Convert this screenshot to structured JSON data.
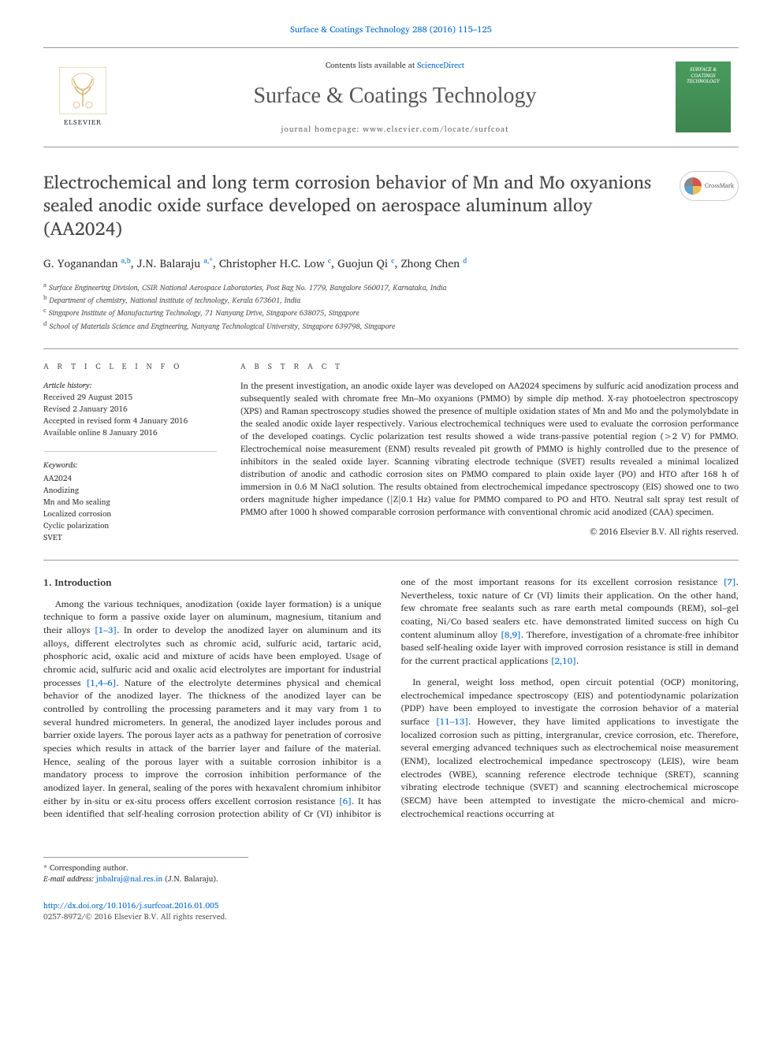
{
  "header": {
    "top_link": "Surface & Coatings Technology 288 (2016) 115–125",
    "contents_prefix": "Contents lists available at ",
    "contents_link": "ScienceDirect",
    "journal_name": "Surface & Coatings Technology",
    "homepage_label": "journal homepage: ",
    "homepage_url": "www.elsevier.com/locate/surfcoat",
    "elsevier": "ELSEVIER",
    "cover_title": "SURFACE & COATINGS TECHNOLOGY"
  },
  "crossmark_label": "CrossMark",
  "title": "Electrochemical and long term corrosion behavior of Mn and Mo oxyanions sealed anodic oxide surface developed on aerospace aluminum alloy (AA2024)",
  "authors": [
    {
      "name": "G. Yoganandan",
      "aff": "a,b"
    },
    {
      "name": "J.N. Balaraju",
      "aff": "a,*"
    },
    {
      "name": "Christopher H.C. Low",
      "aff": "c"
    },
    {
      "name": "Guojun Qi",
      "aff": "c"
    },
    {
      "name": "Zhong Chen",
      "aff": "d"
    }
  ],
  "affiliations": [
    {
      "key": "a",
      "text": "Surface Engineering Division, CSIR National Aerospace Laboratories, Post Bag No. 1779, Bangalore 560017, Karnataka, India"
    },
    {
      "key": "b",
      "text": "Department of chemistry, National institute of technology, Kerala 673601, India"
    },
    {
      "key": "c",
      "text": "Singapore Institute of Manufacturing Technology, 71 Nanyang Drive, Singapore 638075, Singapore"
    },
    {
      "key": "d",
      "text": "School of Materials Science and Engineering, Nanyang Technological University, Singapore 639798, Singapore"
    }
  ],
  "info_heading": "a r t i c l e   i n f o",
  "abstract_heading": "a b s t r a c t",
  "history_label": "Article history:",
  "history": [
    "Received 29 August 2015",
    "Revised 2 January 2016",
    "Accepted in revised form 4 January 2016",
    "Available online 8 January 2016"
  ],
  "keywords_label": "Keywords:",
  "keywords": [
    "AA2024",
    "Anodizing",
    "Mn and Mo sealing",
    "Localized corrosion",
    "Cyclic polarization",
    "SVET"
  ],
  "abstract": "In the present investigation, an anodic oxide layer was developed on AA2024 specimens by sulfuric acid anodization process and subsequently sealed with chromate free Mn–Mo oxyanions (PMMO) by simple dip method. X-ray photoelectron spectroscopy (XPS) and Raman spectroscopy studies showed the presence of multiple oxidation states of Mn and Mo and the polymolybdate in the sealed anodic oxide layer respectively. Various electrochemical techniques were used to evaluate the corrosion performance of the developed coatings. Cyclic polarization test results showed a wide trans-passive potential region (>2 V) for PMMO. Electrochemical noise measurement (ENM) results revealed pit growth of PMMO is highly controlled due to the presence of inhibitors in the sealed oxide layer. Scanning vibrating electrode technique (SVET) results revealed a minimal localized distribution of anodic and cathodic corrosion sites on PMMO compared to plain oxide layer (PO) and HTO after 168 h of immersion in 0.6 M NaCl solution. The results obtained from electrochemical impedance spectroscopy (EIS) showed one to two orders magnitude higher impedance (|Z|0.1 Hz) value for PMMO compared to PO and HTO. Neutral salt spray test result of PMMO after 1000 h showed comparable corrosion performance with conventional chromic acid anodized (CAA) specimen.",
  "abstract_copyright": "© 2016 Elsevier B.V. All rights reserved.",
  "section1_heading": "1. Introduction",
  "para1a": "Among the various techniques, anodization (oxide layer formation) is a unique technique to form a passive oxide layer on aluminum, magnesium, titanium and their alloys ",
  "ref1": "[1–3]",
  "para1b": ". In order to develop the anodized layer on aluminum and its alloys, different electrolytes such as chromic acid, sulfuric acid, tartaric acid, phosphoric acid, oxalic acid and mixture of acids have been employed. Usage of chromic acid, sulfuric acid and oxalic acid electrolytes are important for industrial processes ",
  "ref2": "[1,4–6]",
  "para1c": ". Nature of the electrolyte determines physical and chemical behavior of the anodized layer. The thickness of the anodized layer can be controlled by controlling the processing parameters and it may vary from 1 to several hundred micrometers. In general, the anodized layer includes porous and barrier oxide layers. The porous layer acts as a pathway for penetration of corrosive species which results in attack of the barrier layer and failure of the material. Hence, sealing of the porous layer with a suitable corrosion inhibitor is a mandatory process to improve the corrosion inhibition performance of the anodized layer. In general, sealing of the pores with hexavalent chromium inhibitor either by in-situ or ex-situ process offers excellent corrosion resistance ",
  "ref3": "[6]",
  "para1d": ". It has been identified that self-healing corrosion protection ability of Cr (VI) inhibitor is one of the most important reasons for its excellent corrosion resistance ",
  "ref4": "[7]",
  "para1e": ". Nevertheless, toxic nature of Cr (VI) limits their application. On the other hand, few chromate free sealants such as rare earth metal compounds (REM), sol–gel coating, Ni/Co based sealers etc. have demonstrated limited success on high Cu content aluminum alloy ",
  "ref5": "[8,9]",
  "para1f": ". Therefore, investigation of a chromate-free inhibitor based self-healing oxide layer with improved corrosion resistance is still in demand for the current practical applications ",
  "ref6": "[2,10]",
  "para1g": ".",
  "para2a": "In general, weight loss method, open circuit potential (OCP) monitoring, electrochemical impedance spectroscopy (EIS) and potentiodynamic polarization (PDP) have been employed to investigate the corrosion behavior of a material surface ",
  "ref7": "[11–13]",
  "para2b": ". However, they have limited applications to investigate the localized corrosion such as pitting, intergranular, crevice corrosion, etc. Therefore, several emerging advanced techniques such as electrochemical noise measurement (ENM), localized electrochemical impedance spectroscopy (LEIS), wire beam electrodes (WBE), scanning reference electrode technique (SRET), scanning vibrating electrode technique (SVET) and scanning electrochemical microscope (SECM) have been attempted to investigate the micro-chemical and micro-electrochemical reactions occurring at",
  "corr_label": "* Corresponding author.",
  "email_label": "E-mail address: ",
  "email": "jnbalraj@nal.res.in",
  "email_suffix": " (J.N. Balaraju).",
  "doi": "http://dx.doi.org/10.1016/j.surfcoat.2016.01.005",
  "issn_copy": "0257-8972/© 2016 Elsevier B.V. All rights reserved.",
  "colors": {
    "link": "#0066cc",
    "text": "#333333",
    "muted": "#555555",
    "border": "#999999",
    "cover_bg": "#4a9b5e"
  }
}
